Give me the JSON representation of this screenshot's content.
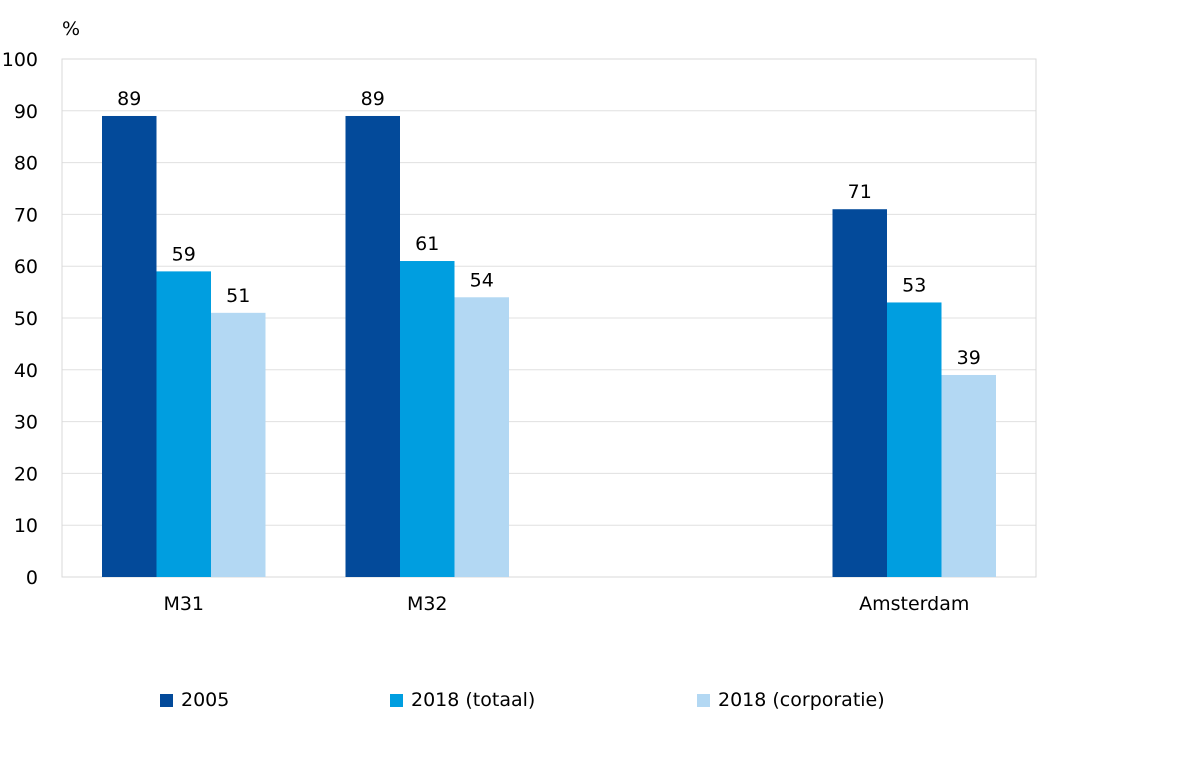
{
  "chart_data": {
    "type": "bar",
    "yunit": "%",
    "categories": [
      "M31",
      "M32",
      "",
      "Amsterdam"
    ],
    "series": [
      {
        "name": "2005",
        "color": "#034a9a",
        "values": [
          89,
          89,
          null,
          71
        ]
      },
      {
        "name": "2018 (totaal)",
        "color": "#009ee0",
        "values": [
          59,
          61,
          null,
          53
        ]
      },
      {
        "name": "2018 (corporatie)",
        "color": "#b3d8f3",
        "values": [
          51,
          54,
          null,
          39
        ]
      }
    ],
    "ylim": [
      0,
      100
    ],
    "yticks": [
      0,
      10,
      20,
      30,
      40,
      50,
      60,
      70,
      80,
      90,
      100
    ],
    "grid": true,
    "legend_position": "bottom"
  }
}
